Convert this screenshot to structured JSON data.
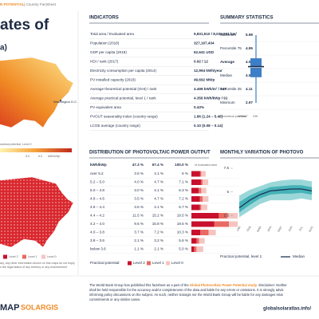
{
  "header": {
    "brand": "R POTENTIAL",
    "kind": "| Country Factsheet",
    "title": "ates of",
    "subtitle": "a)"
  },
  "map": {
    "capital_label": "Washington D.C.",
    "legend_title": "ractical potential, Level 0",
    "scale_labels": [
      "5.0",
      "6.0",
      "kWh/kWp"
    ],
    "disclaimer": [
      "ary, any other information shown on this maps do not imply",
      "n the legal status of any territory or any endorsement"
    ]
  },
  "logos": {
    "left": "MAP",
    "right": "SOLARGIS"
  },
  "indicators": {
    "title": "INDICATORS",
    "rows": [
      {
        "label": "Total area / Evaluated area",
        "value": "9,831,510 / 8,039,961 km²"
      },
      {
        "label": "Population (2018)",
        "value": "327,167,434"
      },
      {
        "label": "GDP per capita (2018)",
        "value": "62,641 USD"
      },
      {
        "label": "HDI / rank (2017)",
        "value": "0.92 / 12"
      },
      {
        "label": "Electricity consumption per capita (2014)",
        "value": "12,994 kWh/year"
      },
      {
        "label": "PV installed capacity (2018)",
        "value": "49,692 MWp"
      },
      {
        "label": "Average theoretical potential (GHI) / rank",
        "value": "4.498 kWh/m² / 147"
      },
      {
        "label": "Average practical potential, level 1 / rank",
        "value": "4.358 kWh/kWp / 91"
      },
      {
        "label": "PV equivalent area",
        "value": "0.43%"
      },
      {
        "label": "PVOUT seasonality index (country range)",
        "value": "1.86 (1.24 – 5.48)"
      },
      {
        "label": "LCOE average (country range)",
        "value": "0.10 (0.08 – 0.14)"
      }
    ]
  },
  "summary": {
    "title": "SUMMARY STATISTICS",
    "rows": [
      {
        "label": "Maximum",
        "value": 5.98
      },
      {
        "label": "Percentile 75",
        "value": 4.95
      },
      {
        "label": "Average",
        "value": 4.58
      },
      {
        "label": "Median",
        "value": 4.54
      },
      {
        "label": "Percentile 25",
        "value": 4.11
      },
      {
        "label": "Minimum",
        "value": 2.97
      }
    ],
    "box_color": "#3d7fc6",
    "footer": [
      "Theoretical potential",
      "kWh/m²",
      "GHI"
    ]
  },
  "distribution": {
    "title": "DISTRIBUTION OF PHOTOVOLTAIC POWER OUTPUT",
    "unit": "kWh/kWp",
    "totals": [
      "47.3 %",
      "67.4 %",
      "100.0 %"
    ],
    "totals_note": "of evaluated area",
    "categories": [
      "over 5.2",
      "5.2 – 5.0",
      "5.0 – 4.8",
      "4.8 – 4.6",
      "4.6 – 4.4",
      "4.4 – 4.2",
      "4.2 – 4.0",
      "4.0 – 3.8",
      "3.8 – 3.6",
      "below 3.6"
    ],
    "legend_label": "Practical potential:",
    "series": [
      {
        "name": "Level 2",
        "color": "#c8102e",
        "values": [
          3.6,
          4.0,
          3.0,
          3.5,
          3.5,
          11.5,
          9.6,
          3.7,
          2.1,
          1.1
        ],
        "value_labels": [
          "3.6 %",
          "4.0 %",
          "3.0 %",
          "3.5 %",
          "3.5 %",
          "11.5 %",
          "9.6 %",
          "3.7 %",
          "2.1 %",
          "1.1 %"
        ]
      },
      {
        "name": "Level 1",
        "color": "#e86a63",
        "values": [
          4.1,
          4.7,
          4.1,
          4.7,
          4.1,
          15.2,
          15.8,
          7.2,
          3.2,
          2.1
        ],
        "value_labels": [
          "4.1 %",
          "4.7 %",
          "4.1 %",
          "4.7 %",
          "4.1 %",
          "15.2 %",
          "15.8 %",
          "7.2 %",
          "3.2 %",
          "2.1 %"
        ]
      },
      {
        "name": "Level 0",
        "color": "#f5c4c1",
        "values": [
          6,
          7.1,
          6.3,
          7.2,
          6.7,
          19.5,
          19.5,
          10.3,
          5.6,
          5.0
        ],
        "value_labels": [
          "6 %",
          "7.1 %",
          "6.3 %",
          "7.2 %",
          "6.7 %",
          "19.5 %",
          "19.5 %",
          "10.3 %",
          "5.6 %",
          "5.0 %"
        ]
      }
    ]
  },
  "chart_data": {
    "type": "line",
    "title": "MONTHLY VARIATION OF PHOTOVO",
    "categories": [
      "JAN",
      "FEB",
      "MAR",
      "APR",
      "MAY",
      "JUN",
      "JUL",
      "AUG"
    ],
    "ylim": [
      2,
      7.5
    ],
    "yticks": [
      2.5,
      5,
      7.5
    ],
    "legend_label": "Practical potential, level 1:",
    "band_outer": {
      "color": "#9bd7d9",
      "high": [
        4.6,
        5.2,
        5.6,
        6.0,
        6.2,
        6.3,
        6.3,
        6.1
      ],
      "low": [
        2.3,
        3.0,
        3.7,
        4.1,
        4.1,
        4.1,
        4.3,
        4.1
      ]
    },
    "band_inner": {
      "color": "#45b3b8",
      "high": [
        3.9,
        4.6,
        5.1,
        5.5,
        5.6,
        5.7,
        5.7,
        5.5
      ],
      "low": [
        2.8,
        3.6,
        4.3,
        4.7,
        4.8,
        4.8,
        4.9,
        4.7
      ]
    },
    "series": [
      {
        "name": "Median",
        "color": "#1d3557",
        "values": [
          3.3,
          4.1,
          4.7,
          5.1,
          5.2,
          5.3,
          5.3,
          5.1
        ]
      }
    ]
  },
  "footer": {
    "pre": "The World Bank Group has published this factsheet as a part of the ",
    "link": "Global Photovoltaic Power Potential study",
    "post": ". Disclaimer: Neither",
    "lines": [
      "shall be held responsible for the accuracy and/or completeness of the data and liable for any errors or omissions. It is strongly advis",
      "informing policy discussions on the subject. As such, neither Solargis nor the World Bank Group will be liable for any damages relat",
      "commitments or any similar cases."
    ],
    "url": "globalsolaratlas.info/"
  }
}
